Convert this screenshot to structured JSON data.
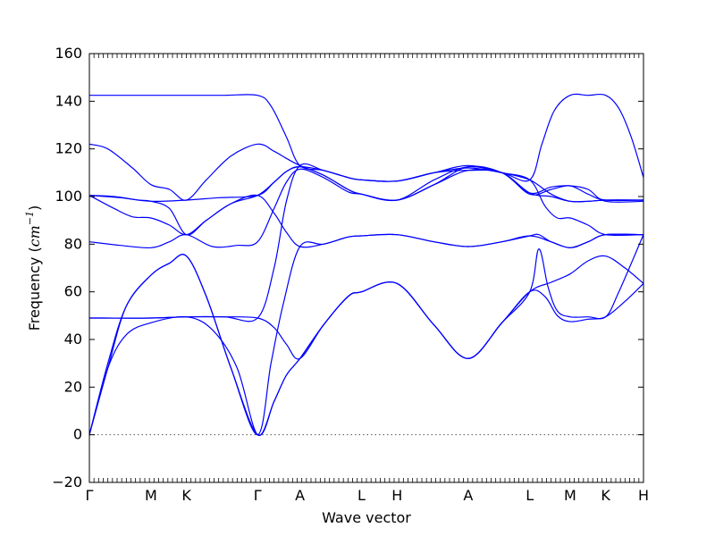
{
  "chart_data": {
    "type": "line",
    "xlabel": "Wave vector",
    "ylabel_prefix": "Frequency (",
    "ylabel_unit": "cm",
    "ylabel_exp": "−1",
    "ylabel_suffix": ")",
    "ylim": [
      -20,
      160
    ],
    "y_ticks": [
      "−20",
      "0",
      "20",
      "40",
      "60",
      "80",
      "100",
      "120",
      "140",
      "160"
    ],
    "y_tick_values": [
      -20,
      0,
      20,
      40,
      60,
      80,
      100,
      120,
      140,
      160
    ],
    "x_label_names": [
      "Γ",
      "M",
      "K",
      "Γ",
      "A",
      "L",
      "H",
      "A",
      "L",
      "M",
      "K",
      "H"
    ],
    "x_label_positions": [
      0,
      1,
      1.577,
      2.732,
      3.42,
      4.42,
      4.997,
      6.152,
      7.152,
      7.808,
      8.385,
      9.0
    ],
    "xlim": [
      0,
      9.0
    ],
    "zero_line": true,
    "bands": [
      [
        [
          0,
          0
        ],
        [
          0.3,
          28
        ],
        [
          0.6,
          42
        ],
        [
          1,
          47
        ],
        [
          1.577,
          49.5
        ],
        [
          2,
          44
        ],
        [
          2.4,
          28
        ],
        [
          2.732,
          0
        ],
        [
          3,
          14
        ],
        [
          3.2,
          25
        ],
        [
          3.42,
          32
        ],
        [
          3.8,
          46
        ],
        [
          4.2,
          58
        ],
        [
          4.42,
          60
        ],
        [
          4.997,
          63.5
        ],
        [
          5.6,
          46
        ],
        [
          6.152,
          32
        ],
        [
          6.7,
          47
        ],
        [
          7.152,
          60
        ],
        [
          7.5,
          64
        ],
        [
          7.808,
          67.5
        ],
        [
          8.1,
          73
        ],
        [
          8.385,
          75
        ],
        [
          8.7,
          70
        ],
        [
          9.0,
          63.5
        ]
      ],
      [
        [
          0,
          0
        ],
        [
          0.3,
          30
        ],
        [
          0.6,
          54
        ],
        [
          1,
          67
        ],
        [
          1.3,
          72
        ],
        [
          1.577,
          75
        ],
        [
          1.9,
          58
        ],
        [
          2.3,
          28
        ],
        [
          2.732,
          0
        ],
        [
          3,
          14
        ],
        [
          3.2,
          25
        ],
        [
          3.42,
          32
        ],
        [
          3.8,
          46
        ],
        [
          4.2,
          58
        ],
        [
          4.42,
          60
        ],
        [
          4.997,
          63.5
        ],
        [
          5.6,
          46
        ],
        [
          6.152,
          32
        ],
        [
          6.7,
          47
        ],
        [
          7.152,
          60
        ],
        [
          7.4,
          58
        ],
        [
          7.6,
          50
        ],
        [
          7.808,
          47.5
        ],
        [
          8.1,
          48.5
        ],
        [
          8.385,
          49.5
        ],
        [
          8.7,
          56
        ],
        [
          9.0,
          63.5
        ]
      ],
      [
        [
          0,
          0
        ],
        [
          0.3,
          28
        ],
        [
          0.6,
          54
        ],
        [
          1,
          67
        ],
        [
          1.3,
          72
        ],
        [
          1.577,
          75
        ],
        [
          1.9,
          58
        ],
        [
          2.3,
          28
        ],
        [
          2.732,
          0
        ],
        [
          2.95,
          30
        ],
        [
          3.15,
          55
        ],
        [
          3.42,
          79
        ],
        [
          3.8,
          80
        ],
        [
          4.2,
          83
        ],
        [
          4.42,
          83.5
        ],
        [
          4.997,
          84
        ],
        [
          5.6,
          81
        ],
        [
          6.152,
          79
        ],
        [
          6.7,
          81
        ],
        [
          7.152,
          83.5
        ],
        [
          7.5,
          81
        ],
        [
          7.808,
          78.5
        ],
        [
          8.1,
          81
        ],
        [
          8.385,
          84
        ],
        [
          9.0,
          84
        ]
      ],
      [
        [
          0,
          49
        ],
        [
          1,
          49
        ],
        [
          1.577,
          49.5
        ],
        [
          2.2,
          49.5
        ],
        [
          2.732,
          49
        ],
        [
          3.0,
          45
        ],
        [
          3.2,
          38
        ],
        [
          3.42,
          32
        ],
        [
          3.8,
          46
        ],
        [
          4.2,
          58
        ],
        [
          4.42,
          60
        ],
        [
          4.997,
          63.5
        ],
        [
          5.6,
          46
        ],
        [
          6.152,
          32
        ],
        [
          6.7,
          47
        ],
        [
          7.152,
          60
        ],
        [
          7.3,
          78
        ],
        [
          7.45,
          62
        ],
        [
          7.6,
          52
        ],
        [
          7.808,
          49.5
        ],
        [
          8.1,
          49.5
        ],
        [
          8.385,
          49.5
        ],
        [
          8.6,
          60
        ],
        [
          9.0,
          84
        ]
      ],
      [
        [
          0,
          49
        ],
        [
          1,
          49
        ],
        [
          1.577,
          49.5
        ],
        [
          2.2,
          49.5
        ],
        [
          2.732,
          49
        ],
        [
          3.0,
          70
        ],
        [
          3.2,
          98
        ],
        [
          3.42,
          113
        ],
        [
          3.8,
          111
        ],
        [
          4.2,
          108
        ],
        [
          4.42,
          107
        ],
        [
          4.997,
          106.5
        ],
        [
          5.6,
          110
        ],
        [
          6.152,
          113
        ],
        [
          6.7,
          110
        ],
        [
          7.152,
          107
        ],
        [
          7.4,
          96
        ],
        [
          7.6,
          91
        ],
        [
          7.808,
          91
        ],
        [
          8.1,
          88
        ],
        [
          8.385,
          84
        ],
        [
          9.0,
          84
        ]
      ],
      [
        [
          0,
          81
        ],
        [
          0.5,
          79.5
        ],
        [
          1,
          78.5
        ],
        [
          1.3,
          81
        ],
        [
          1.577,
          84
        ],
        [
          2.0,
          79
        ],
        [
          2.4,
          79.5
        ],
        [
          2.732,
          81
        ],
        [
          3.0,
          95
        ],
        [
          3.2,
          106
        ],
        [
          3.42,
          111.5
        ],
        [
          3.8,
          108
        ],
        [
          4.2,
          102
        ],
        [
          4.42,
          101
        ],
        [
          4.997,
          98.5
        ],
        [
          5.6,
          105
        ],
        [
          6.152,
          111
        ],
        [
          6.7,
          110
        ],
        [
          7.152,
          101.5
        ],
        [
          7.5,
          100
        ],
        [
          7.808,
          98
        ],
        [
          8.1,
          98
        ],
        [
          8.385,
          98.5
        ],
        [
          9.0,
          98.5
        ]
      ],
      [
        [
          0,
          100.5
        ],
        [
          0.4,
          95
        ],
        [
          0.7,
          91.5
        ],
        [
          1,
          91
        ],
        [
          1.3,
          88
        ],
        [
          1.577,
          84
        ],
        [
          1.9,
          90
        ],
        [
          2.3,
          97
        ],
        [
          2.732,
          100.5
        ],
        [
          3.0,
          93
        ],
        [
          3.2,
          85
        ],
        [
          3.42,
          79
        ],
        [
          3.8,
          80
        ],
        [
          4.2,
          83
        ],
        [
          4.42,
          83.5
        ],
        [
          4.997,
          84
        ],
        [
          5.6,
          81
        ],
        [
          6.152,
          79
        ],
        [
          6.7,
          81
        ],
        [
          7.152,
          83.5
        ],
        [
          7.3,
          84
        ],
        [
          7.5,
          81
        ],
        [
          7.808,
          78.5
        ],
        [
          8.1,
          81
        ],
        [
          8.385,
          84
        ],
        [
          9.0,
          84
        ]
      ],
      [
        [
          0,
          100.5
        ],
        [
          0.5,
          99.5
        ],
        [
          1,
          98
        ],
        [
          1.577,
          98.5
        ],
        [
          2.1,
          99.5
        ],
        [
          2.732,
          100.5
        ],
        [
          3.0,
          106
        ],
        [
          3.2,
          110.5
        ],
        [
          3.42,
          112.5
        ],
        [
          3.8,
          111
        ],
        [
          4.2,
          108
        ],
        [
          4.42,
          107
        ],
        [
          4.997,
          106.5
        ],
        [
          5.6,
          110
        ],
        [
          6.152,
          111
        ],
        [
          6.7,
          110
        ],
        [
          7.152,
          101
        ],
        [
          7.5,
          103
        ],
        [
          7.808,
          104.5
        ],
        [
          8.1,
          101
        ],
        [
          8.385,
          98.5
        ],
        [
          9.0,
          98.5
        ]
      ],
      [
        [
          0,
          100.5
        ],
        [
          0.4,
          100
        ],
        [
          0.8,
          98.5
        ],
        [
          1,
          98
        ],
        [
          1.3,
          95
        ],
        [
          1.577,
          84
        ],
        [
          1.9,
          90
        ],
        [
          2.3,
          97
        ],
        [
          2.732,
          100.5
        ],
        [
          3.0,
          106
        ],
        [
          3.2,
          110.5
        ],
        [
          3.42,
          112.5
        ],
        [
          3.8,
          109
        ],
        [
          4.2,
          103
        ],
        [
          4.42,
          101
        ],
        [
          4.997,
          98.5
        ],
        [
          5.6,
          105
        ],
        [
          6.152,
          112.5
        ],
        [
          6.7,
          110
        ],
        [
          7.152,
          101.5
        ],
        [
          7.5,
          104
        ],
        [
          7.808,
          104.5
        ],
        [
          8.1,
          103
        ],
        [
          8.385,
          98
        ],
        [
          9.0,
          98
        ]
      ],
      [
        [
          0,
          122
        ],
        [
          0.3,
          120
        ],
        [
          0.7,
          112
        ],
        [
          1,
          105
        ],
        [
          1.3,
          103
        ],
        [
          1.577,
          98.5
        ],
        [
          1.9,
          107
        ],
        [
          2.3,
          117
        ],
        [
          2.732,
          122
        ],
        [
          3.0,
          119
        ],
        [
          3.2,
          116
        ],
        [
          3.42,
          113
        ],
        [
          3.8,
          109
        ],
        [
          4.2,
          103
        ],
        [
          4.42,
          101
        ],
        [
          4.997,
          98.5
        ],
        [
          5.6,
          107
        ],
        [
          6.152,
          112.5
        ],
        [
          6.7,
          110
        ],
        [
          7.152,
          107
        ],
        [
          7.5,
          101
        ],
        [
          7.808,
          98
        ],
        [
          8.1,
          98
        ],
        [
          8.385,
          98.5
        ],
        [
          9.0,
          98.5
        ]
      ],
      [
        [
          0,
          142.5
        ],
        [
          1,
          142.5
        ],
        [
          1.577,
          142.5
        ],
        [
          2.2,
          142.5
        ],
        [
          2.732,
          142.5
        ],
        [
          2.95,
          138
        ],
        [
          3.2,
          125
        ],
        [
          3.42,
          113
        ],
        [
          3.8,
          111
        ],
        [
          4.2,
          108
        ],
        [
          4.42,
          107
        ],
        [
          4.997,
          106.5
        ],
        [
          5.6,
          110
        ],
        [
          6.152,
          112
        ],
        [
          6.7,
          110
        ],
        [
          7.152,
          107
        ],
        [
          7.35,
          122
        ],
        [
          7.55,
          136
        ],
        [
          7.808,
          142.5
        ],
        [
          8.1,
          142.5
        ],
        [
          8.385,
          142.5
        ],
        [
          8.6,
          137
        ],
        [
          8.8,
          125
        ],
        [
          9.0,
          108
        ]
      ]
    ]
  }
}
